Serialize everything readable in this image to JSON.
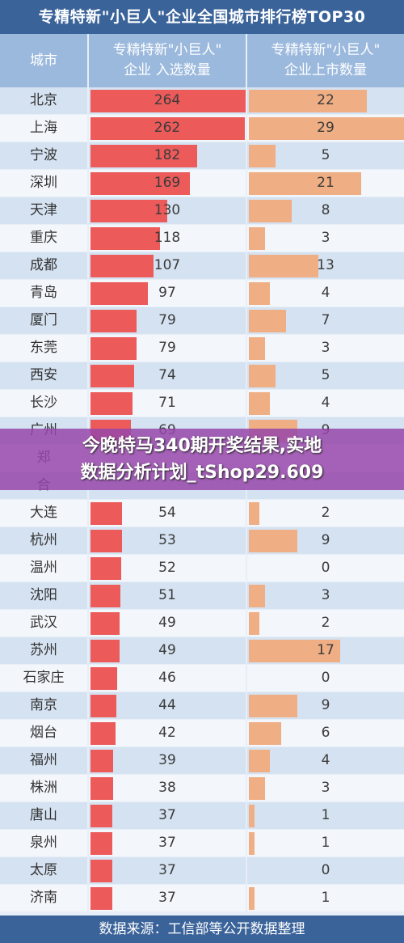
{
  "title": "专精特新\"小巨人\"企业全国城市排行榜TOP30",
  "header": {
    "city": "城市",
    "selected_line1": "专精特新\"小巨人\"",
    "selected_line2": "企业 入选数量",
    "listed_line1": "专精特新\"小巨人\"",
    "listed_line2": "企业上市数量"
  },
  "source": "数据来源：工信部等公开数据整理",
  "overlay": {
    "line1": "今晚特马340期开奖结果,实地",
    "line2": "数据分析计划_tShop29.609"
  },
  "colors": {
    "selected_bar": "#ec5a5a",
    "listed_bar": "#efae83",
    "header": "#9bb9dd",
    "title_bg": "#3a639a"
  },
  "chart_data": {
    "type": "table",
    "title": "专精特新\"小巨人\"企业全国城市排行榜TOP30",
    "columns": [
      "城市",
      "专精特新\"小巨人\"企业 入选数量",
      "专精特新\"小巨人\"企业上市数量"
    ],
    "selected_max": 264,
    "listed_max": 29,
    "rows": [
      {
        "city": "北京",
        "selected": 264,
        "listed": 22
      },
      {
        "city": "上海",
        "selected": 262,
        "listed": 29
      },
      {
        "city": "宁波",
        "selected": 182,
        "listed": 5
      },
      {
        "city": "深圳",
        "selected": 169,
        "listed": 21
      },
      {
        "city": "天津",
        "selected": 130,
        "listed": 8
      },
      {
        "city": "重庆",
        "selected": 118,
        "listed": 3
      },
      {
        "city": "成都",
        "selected": 107,
        "listed": 13
      },
      {
        "city": "青岛",
        "selected": 97,
        "listed": 4
      },
      {
        "city": "厦门",
        "selected": 79,
        "listed": 7
      },
      {
        "city": "东莞",
        "selected": 79,
        "listed": 3
      },
      {
        "city": "西安",
        "selected": 74,
        "listed": 5
      },
      {
        "city": "长沙",
        "selected": 71,
        "listed": 4
      },
      {
        "city": "广州",
        "selected": 69,
        "listed": 9
      },
      {
        "city": "郑",
        "selected": null,
        "listed": null
      },
      {
        "city": "合",
        "selected": null,
        "listed": null
      },
      {
        "city": "大连",
        "selected": 54,
        "listed": 2
      },
      {
        "city": "杭州",
        "selected": 53,
        "listed": 9
      },
      {
        "city": "温州",
        "selected": 52,
        "listed": 0
      },
      {
        "city": "沈阳",
        "selected": 51,
        "listed": 3
      },
      {
        "city": "武汉",
        "selected": 49,
        "listed": 2
      },
      {
        "city": "苏州",
        "selected": 49,
        "listed": 17
      },
      {
        "city": "石家庄",
        "selected": 46,
        "listed": 0
      },
      {
        "city": "南京",
        "selected": 44,
        "listed": 9
      },
      {
        "city": "烟台",
        "selected": 42,
        "listed": 6
      },
      {
        "city": "福州",
        "selected": 39,
        "listed": 4
      },
      {
        "city": "株洲",
        "selected": 38,
        "listed": 3
      },
      {
        "city": "唐山",
        "selected": 37,
        "listed": 1
      },
      {
        "city": "泉州",
        "selected": 37,
        "listed": 1
      },
      {
        "city": "太原",
        "selected": 37,
        "listed": 0
      },
      {
        "city": "济南",
        "selected": 37,
        "listed": 1
      }
    ]
  }
}
